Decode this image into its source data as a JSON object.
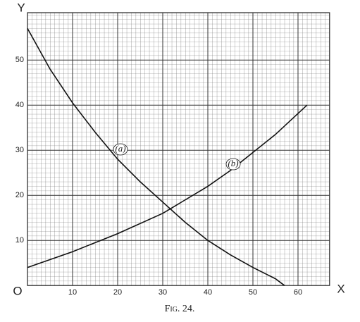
{
  "chart_data": {
    "type": "line",
    "caption": "Fig. 24.",
    "x_axis_label": "X",
    "y_axis_label": "Y",
    "origin_label": "O",
    "xlim": [
      0,
      67
    ],
    "ylim": [
      0,
      60.5
    ],
    "xticks": [
      10,
      20,
      30,
      40,
      50,
      60
    ],
    "yticks": [
      10,
      20,
      30,
      40,
      50
    ],
    "grid": true,
    "series": [
      {
        "name": "(a)",
        "color": "#111111",
        "x": [
          0,
          5,
          10,
          15,
          20,
          25,
          30,
          35,
          40,
          45,
          50,
          55,
          57
        ],
        "values": [
          57,
          48,
          40.5,
          34,
          28,
          23,
          18.5,
          14,
          10,
          6.8,
          4,
          1.5,
          0
        ]
      },
      {
        "name": "(b)",
        "color": "#111111",
        "x": [
          0,
          10,
          20,
          30,
          40,
          45,
          50,
          55,
          62
        ],
        "values": [
          4,
          7.5,
          11.5,
          16,
          22,
          25.5,
          29.5,
          33.5,
          40
        ]
      }
    ]
  }
}
